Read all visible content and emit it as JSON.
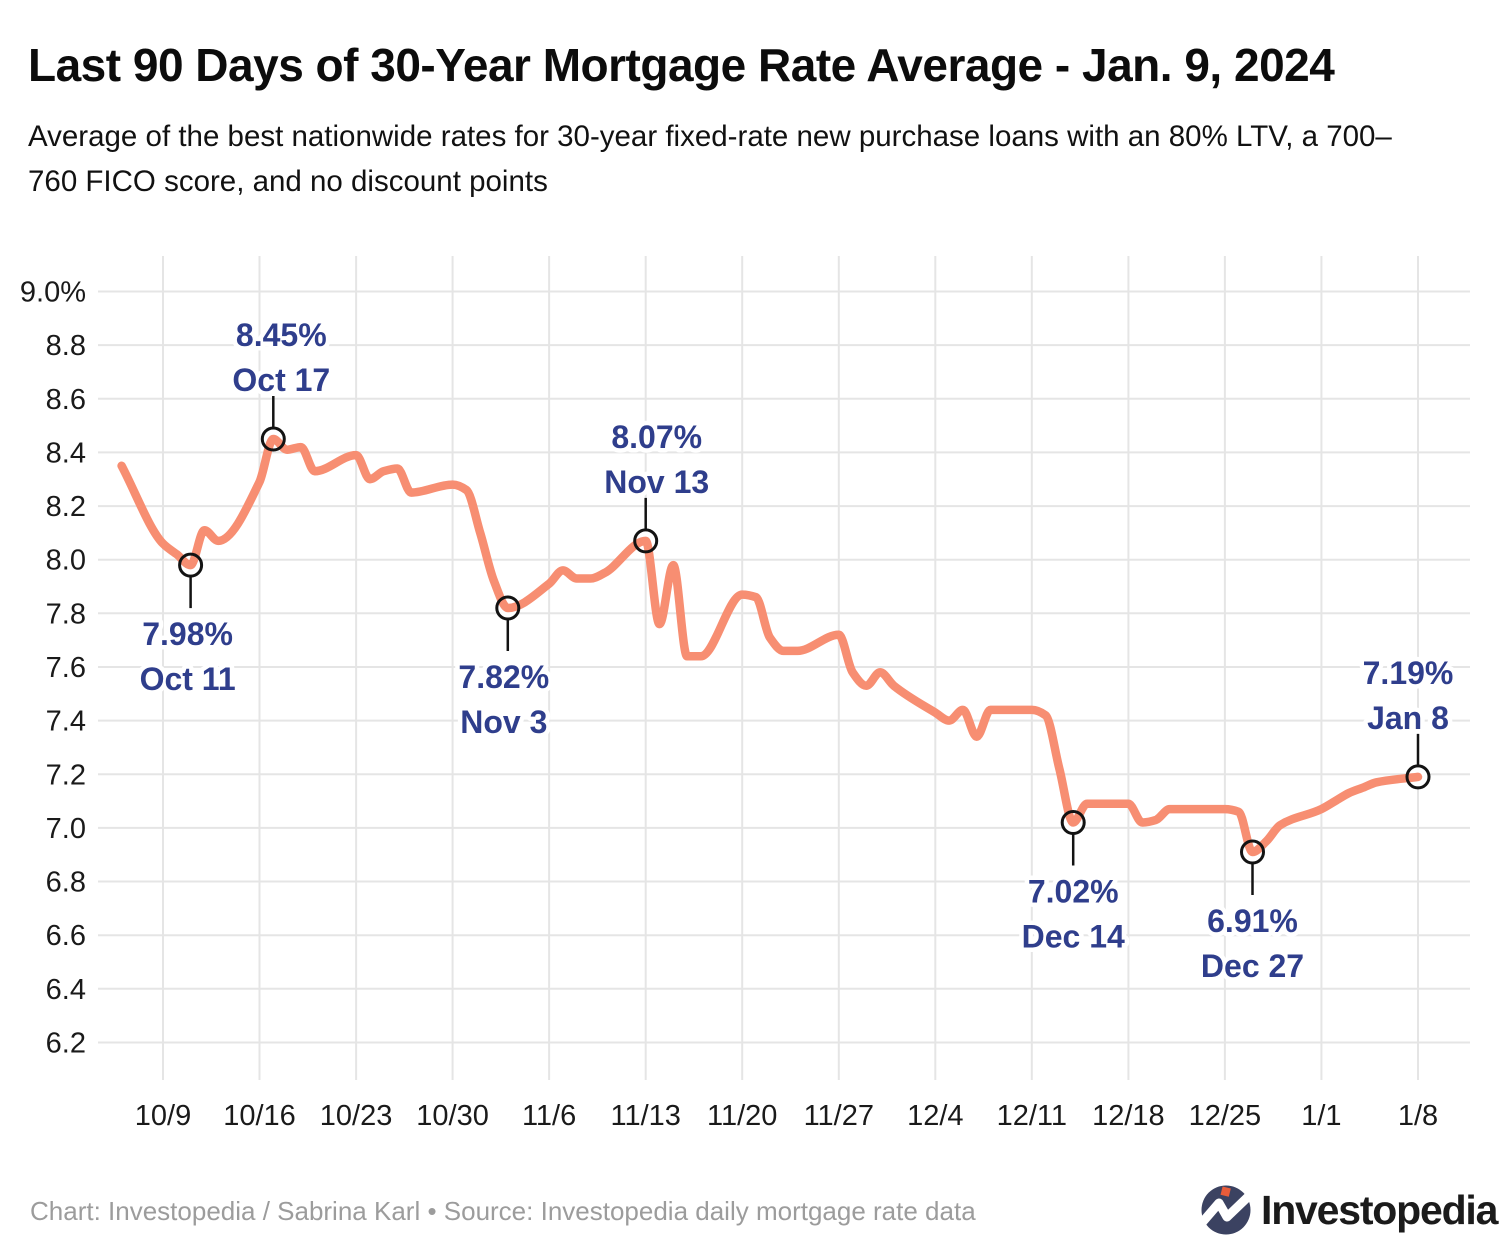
{
  "page": {
    "title": "Last 90 Days of 30-Year Mortgage Rate Average - Jan. 9, 2024",
    "subtitle_lines": [
      "Average of the best nationwide rates for 30-year fixed-rate new purchase loans with an 80% LTV, a 700–",
      "760 FICO score, and no discount points"
    ],
    "footer": {
      "attribution": "Chart: Investopedia / Sabrina Karl • Source: Investopedia daily mortgage rate data",
      "logo_text": "Investopedia"
    }
  },
  "chart_data": {
    "type": "line",
    "title": "Last 90 Days of 30-Year Mortgage Rate Average - Jan. 9, 2024",
    "subtitle": "Average of the best nationwide rates for 30-year fixed-rate new purchase loans with an 80% LTV, a 700–760 FICO score, and no discount points",
    "unit": "percent",
    "ylim": [
      6.2,
      9.0
    ],
    "y_tick_step": 0.2,
    "y_tick_labels": [
      "9.0%",
      "8.8",
      "8.6",
      "8.4",
      "8.2",
      "8.0",
      "7.8",
      "7.6",
      "7.4",
      "7.2",
      "7.0",
      "6.8",
      "6.6",
      "6.4",
      "6.2"
    ],
    "x_ticks": [
      {
        "label": "10/9",
        "date": "2023-10-09"
      },
      {
        "label": "10/16",
        "date": "2023-10-16"
      },
      {
        "label": "10/23",
        "date": "2023-10-23"
      },
      {
        "label": "10/30",
        "date": "2023-10-30"
      },
      {
        "label": "11/6",
        "date": "2023-11-06"
      },
      {
        "label": "11/13",
        "date": "2023-11-13"
      },
      {
        "label": "11/20",
        "date": "2023-11-20"
      },
      {
        "label": "11/27",
        "date": "2023-11-27"
      },
      {
        "label": "12/4",
        "date": "2023-12-04"
      },
      {
        "label": "12/11",
        "date": "2023-12-11"
      },
      {
        "label": "12/18",
        "date": "2023-12-18"
      },
      {
        "label": "12/25",
        "date": "2023-12-25"
      },
      {
        "label": "1/1",
        "date": "2024-01-01"
      },
      {
        "label": "1/8",
        "date": "2024-01-08"
      }
    ],
    "grid": true,
    "legend": "none",
    "line_color": "#F78E72",
    "annotation_color": "#2F3E8C",
    "grid_color": "#E5E5E5",
    "series": [
      {
        "name": "30-year fixed-rate mortgage average",
        "points": [
          [
            "2023-10-06",
            8.35
          ],
          [
            "2023-10-09",
            8.06
          ],
          [
            "2023-10-10",
            8.02
          ],
          [
            "2023-10-11",
            7.98
          ],
          [
            "2023-10-12",
            8.11
          ],
          [
            "2023-10-13",
            8.07
          ],
          [
            "2023-10-16",
            8.29
          ],
          [
            "2023-10-17",
            8.45
          ],
          [
            "2023-10-18",
            8.41
          ],
          [
            "2023-10-19",
            8.42
          ],
          [
            "2023-10-20",
            8.33
          ],
          [
            "2023-10-23",
            8.39
          ],
          [
            "2023-10-24",
            8.3
          ],
          [
            "2023-10-25",
            8.33
          ],
          [
            "2023-10-26",
            8.34
          ],
          [
            "2023-10-27",
            8.25
          ],
          [
            "2023-10-30",
            8.28
          ],
          [
            "2023-10-31",
            8.26
          ],
          [
            "2023-11-01",
            8.1
          ],
          [
            "2023-11-02",
            7.92
          ],
          [
            "2023-11-03",
            7.82
          ],
          [
            "2023-11-06",
            7.91
          ],
          [
            "2023-11-07",
            7.96
          ],
          [
            "2023-11-08",
            7.93
          ],
          [
            "2023-11-09",
            7.93
          ],
          [
            "2023-11-10",
            7.95
          ],
          [
            "2023-11-13",
            8.07
          ],
          [
            "2023-11-14",
            7.76
          ],
          [
            "2023-11-15",
            7.98
          ],
          [
            "2023-11-16",
            7.64
          ],
          [
            "2023-11-17",
            7.64
          ],
          [
            "2023-11-20",
            7.87
          ],
          [
            "2023-11-21",
            7.86
          ],
          [
            "2023-11-22",
            7.71
          ],
          [
            "2023-11-23",
            7.66
          ],
          [
            "2023-11-24",
            7.66
          ],
          [
            "2023-11-27",
            7.72
          ],
          [
            "2023-11-28",
            7.58
          ],
          [
            "2023-11-29",
            7.53
          ],
          [
            "2023-11-30",
            7.58
          ],
          [
            "2023-12-01",
            7.53
          ],
          [
            "2023-12-04",
            7.43
          ],
          [
            "2023-12-05",
            7.4
          ],
          [
            "2023-12-06",
            7.44
          ],
          [
            "2023-12-07",
            7.34
          ],
          [
            "2023-12-08",
            7.44
          ],
          [
            "2023-12-11",
            7.44
          ],
          [
            "2023-12-12",
            7.42
          ],
          [
            "2023-12-13",
            7.22
          ],
          [
            "2023-12-14",
            7.02
          ],
          [
            "2023-12-15",
            7.09
          ],
          [
            "2023-12-18",
            7.09
          ],
          [
            "2023-12-19",
            7.02
          ],
          [
            "2023-12-20",
            7.03
          ],
          [
            "2023-12-21",
            7.07
          ],
          [
            "2023-12-22",
            7.07
          ],
          [
            "2023-12-25",
            7.07
          ],
          [
            "2023-12-26",
            7.06
          ],
          [
            "2023-12-27",
            6.91
          ],
          [
            "2023-12-28",
            6.95
          ],
          [
            "2023-12-29",
            7.01
          ],
          [
            "2024-01-01",
            7.07
          ],
          [
            "2024-01-02",
            7.1
          ],
          [
            "2024-01-03",
            7.13
          ],
          [
            "2024-01-04",
            7.15
          ],
          [
            "2024-01-05",
            7.17
          ],
          [
            "2024-01-08",
            7.19
          ]
        ]
      }
    ],
    "annotations": [
      {
        "date": "2023-10-11",
        "value": 7.98,
        "value_label": "7.98%",
        "date_label": "Oct 11",
        "side": "below",
        "dx": -3
      },
      {
        "date": "2023-10-17",
        "value": 8.45,
        "value_label": "8.45%",
        "date_label": "Oct 17",
        "side": "above",
        "dx": 8
      },
      {
        "date": "2023-11-03",
        "value": 7.82,
        "value_label": "7.82%",
        "date_label": "Nov 3",
        "side": "below",
        "dx": -4
      },
      {
        "date": "2023-11-13",
        "value": 8.07,
        "value_label": "8.07%",
        "date_label": "Nov 13",
        "side": "above",
        "dx": 11
      },
      {
        "date": "2023-12-14",
        "value": 7.02,
        "value_label": "7.02%",
        "date_label": "Dec 14",
        "side": "below",
        "dx": 0
      },
      {
        "date": "2023-12-27",
        "value": 6.91,
        "value_label": "6.91%",
        "date_label": "Dec 27",
        "side": "below",
        "dx": 0
      },
      {
        "date": "2024-01-08",
        "value": 7.19,
        "value_label": "7.19%",
        "date_label": "Jan 8",
        "side": "above",
        "dx": -10
      }
    ]
  }
}
